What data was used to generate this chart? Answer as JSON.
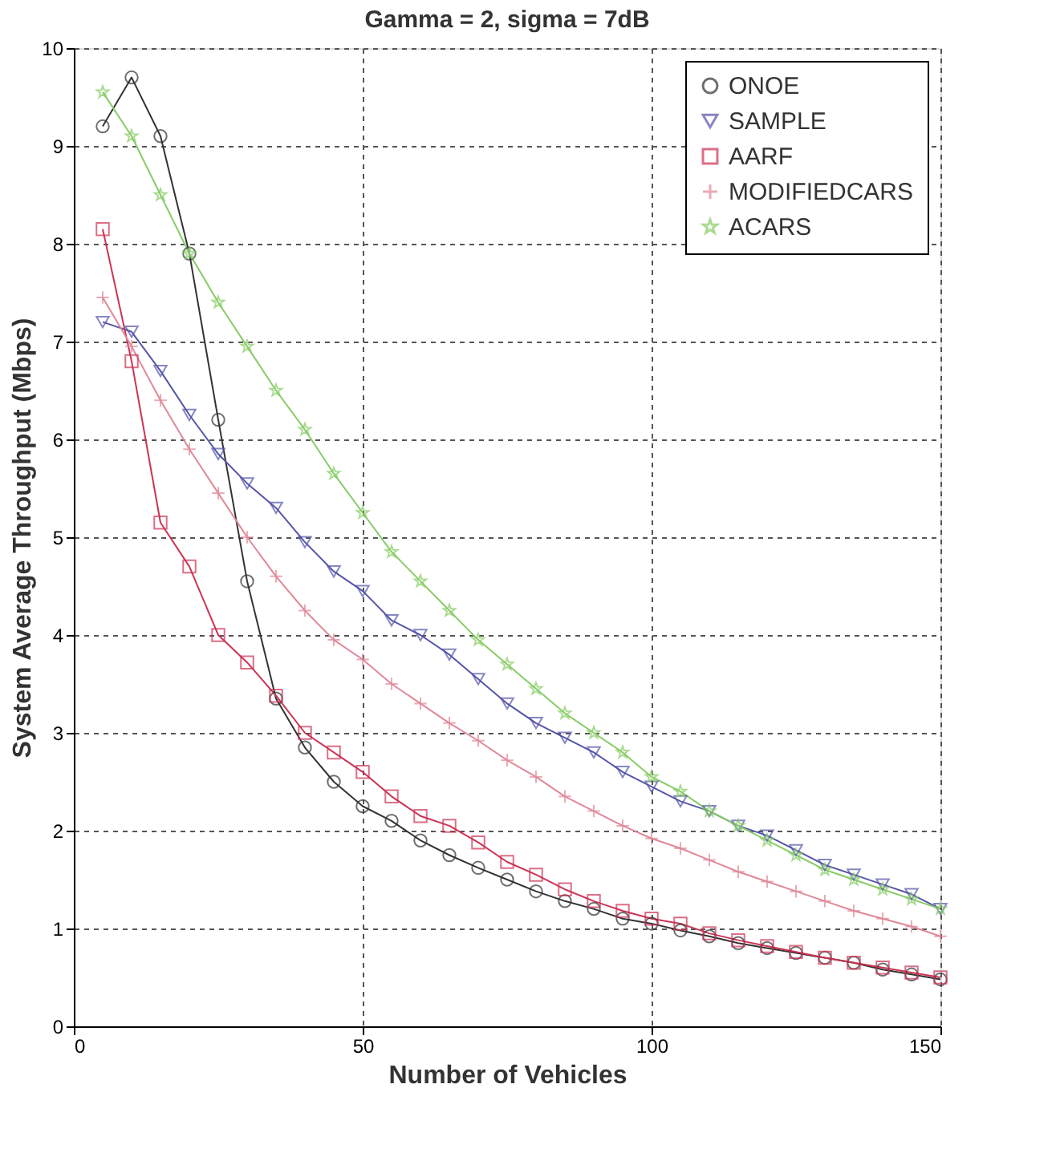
{
  "chart_data": {
    "type": "line",
    "title": "Gamma = 2, sigma = 7dB",
    "xlabel": "Number of Vehicles",
    "ylabel": "System Average Throughput (Mbps)",
    "x": [
      5,
      10,
      15,
      20,
      25,
      30,
      35,
      40,
      45,
      50,
      55,
      60,
      65,
      70,
      75,
      80,
      85,
      90,
      95,
      100,
      105,
      110,
      115,
      120,
      125,
      130,
      135,
      140,
      145,
      150
    ],
    "series": [
      {
        "name": "ONOE",
        "color": "#333333",
        "marker": "circle",
        "values": [
          9.2,
          9.7,
          9.1,
          7.9,
          6.2,
          4.55,
          3.35,
          2.85,
          2.5,
          2.25,
          2.1,
          1.9,
          1.75,
          1.62,
          1.5,
          1.38,
          1.28,
          1.2,
          1.1,
          1.05,
          0.98,
          0.92,
          0.85,
          0.8,
          0.75,
          0.7,
          0.65,
          0.58,
          0.53,
          0.48
        ]
      },
      {
        "name": "SAMPLE",
        "color": "#5555aa",
        "marker": "triangle",
        "values": [
          7.2,
          7.1,
          6.7,
          6.25,
          5.85,
          5.55,
          5.3,
          4.95,
          4.65,
          4.45,
          4.15,
          4.0,
          3.8,
          3.55,
          3.3,
          3.1,
          2.95,
          2.8,
          2.6,
          2.45,
          2.3,
          2.2,
          2.05,
          1.95,
          1.8,
          1.65,
          1.55,
          1.45,
          1.35,
          1.2
        ]
      },
      {
        "name": "AARF",
        "color": "#cc3355",
        "marker": "square",
        "values": [
          8.15,
          6.8,
          5.15,
          4.7,
          4.0,
          3.72,
          3.38,
          3.0,
          2.8,
          2.6,
          2.35,
          2.15,
          2.05,
          1.88,
          1.68,
          1.55,
          1.4,
          1.28,
          1.18,
          1.1,
          1.05,
          0.95,
          0.88,
          0.82,
          0.76,
          0.7,
          0.65,
          0.6,
          0.55,
          0.5
        ]
      },
      {
        "name": "MODIFIEDCARS",
        "color": "#e08898",
        "marker": "cross",
        "values": [
          7.45,
          6.95,
          6.4,
          5.9,
          5.45,
          5.0,
          4.6,
          4.25,
          3.95,
          3.75,
          3.5,
          3.3,
          3.1,
          2.92,
          2.72,
          2.55,
          2.35,
          2.2,
          2.05,
          1.92,
          1.82,
          1.7,
          1.58,
          1.48,
          1.38,
          1.28,
          1.18,
          1.1,
          1.02,
          0.92
        ]
      },
      {
        "name": "ACARS",
        "color": "#88cc66",
        "marker": "star",
        "values": [
          9.55,
          9.1,
          8.5,
          7.9,
          7.4,
          6.95,
          6.5,
          6.1,
          5.65,
          5.25,
          4.85,
          4.55,
          4.25,
          3.95,
          3.7,
          3.45,
          3.2,
          3.0,
          2.8,
          2.55,
          2.4,
          2.2,
          2.05,
          1.9,
          1.75,
          1.6,
          1.5,
          1.4,
          1.3,
          1.2
        ]
      }
    ],
    "xlim": [
      0,
      150
    ],
    "xticks": [
      0,
      50,
      100,
      150
    ],
    "ylim": [
      0,
      10
    ],
    "yticks": [
      0,
      1,
      2,
      3,
      4,
      5,
      6,
      7,
      8,
      9,
      10
    ],
    "grid": true,
    "legend": "top right",
    "line_style": "solid"
  }
}
